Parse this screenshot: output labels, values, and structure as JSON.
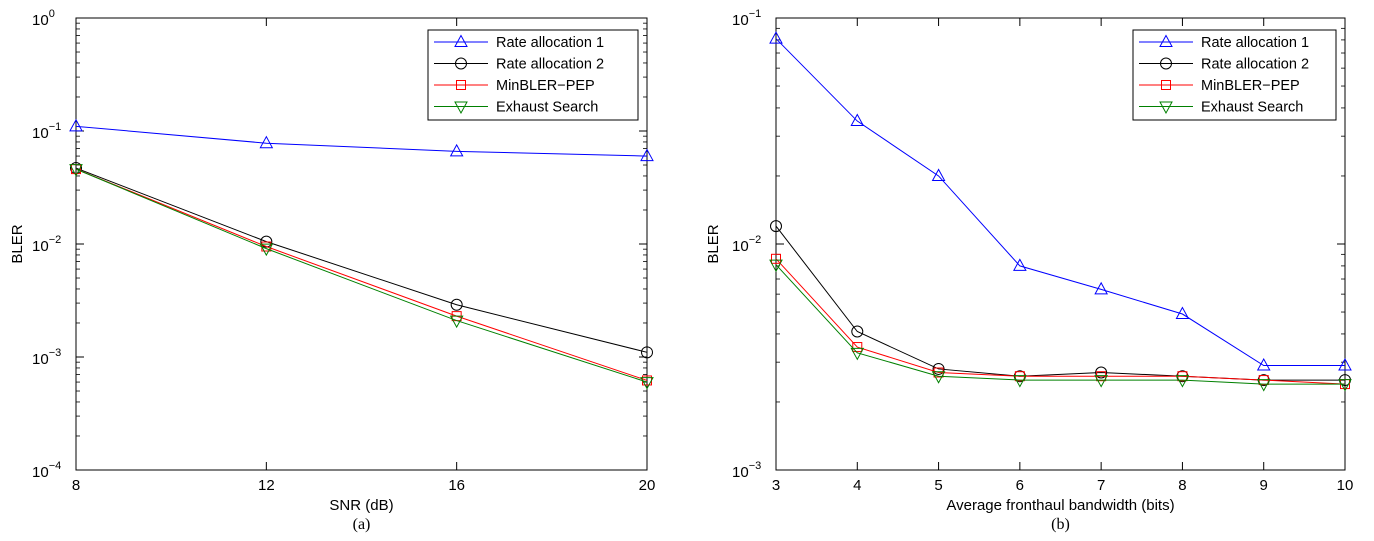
{
  "chart_data": [
    {
      "type": "line",
      "panel_label": "(a)",
      "xlabel": "SNR (dB)",
      "ylabel": "BLER",
      "xlim": [
        8,
        20
      ],
      "ylim": [
        0.0001,
        1
      ],
      "yscale": "log",
      "x_ticks": [
        8,
        12,
        16,
        20
      ],
      "y_ticks": [
        {
          "value": 1,
          "base": "10",
          "exp": "0"
        },
        {
          "value": 0.1,
          "base": "10",
          "exp": "−1"
        },
        {
          "value": 0.01,
          "base": "10",
          "exp": "−2"
        },
        {
          "value": 0.001,
          "base": "10",
          "exp": "−3"
        },
        {
          "value": 0.0001,
          "base": "10",
          "exp": "−4"
        }
      ],
      "grid": false,
      "legend_position": "top-right",
      "x": [
        8,
        12,
        16,
        20
      ],
      "series": [
        {
          "name": "Rate allocation 1",
          "color": "#0000ff",
          "marker": "triangle-up",
          "values": [
            0.11,
            0.078,
            0.066,
            0.06
          ]
        },
        {
          "name": "Rate allocation 2",
          "color": "#000000",
          "marker": "circle",
          "values": [
            0.047,
            0.0105,
            0.0029,
            0.0011
          ]
        },
        {
          "name": "MinBLER−PEP",
          "color": "#ff0000",
          "marker": "square",
          "values": [
            0.046,
            0.0095,
            0.0023,
            0.00062
          ]
        },
        {
          "name": "Exhaust Search",
          "color": "#008000",
          "marker": "triangle-down",
          "values": [
            0.046,
            0.0091,
            0.0021,
            0.0006
          ]
        }
      ]
    },
    {
      "type": "line",
      "panel_label": "(b)",
      "xlabel": "Average fronthaul bandwidth (bits)",
      "ylabel": "BLER",
      "xlim": [
        3,
        10
      ],
      "ylim": [
        0.001,
        0.1
      ],
      "yscale": "log",
      "x_ticks": [
        3,
        4,
        5,
        6,
        7,
        8,
        9,
        10
      ],
      "y_ticks": [
        {
          "value": 0.1,
          "base": "10",
          "exp": "−1"
        },
        {
          "value": 0.01,
          "base": "10",
          "exp": "−2"
        },
        {
          "value": 0.001,
          "base": "10",
          "exp": "−3"
        }
      ],
      "grid": false,
      "legend_position": "top-right",
      "x": [
        3,
        4,
        5,
        6,
        7,
        8,
        9,
        10
      ],
      "series": [
        {
          "name": "Rate allocation 1",
          "color": "#0000ff",
          "marker": "triangle-up",
          "values": [
            0.081,
            0.035,
            0.02,
            0.008,
            0.0063,
            0.0049,
            0.0029,
            0.0029
          ]
        },
        {
          "name": "Rate allocation 2",
          "color": "#000000",
          "marker": "circle",
          "values": [
            0.012,
            0.0041,
            0.0028,
            0.0026,
            0.0027,
            0.0026,
            0.0025,
            0.0025
          ]
        },
        {
          "name": "MinBLER−PEP",
          "color": "#ff0000",
          "marker": "square",
          "values": [
            0.0086,
            0.0035,
            0.0027,
            0.0026,
            0.0026,
            0.0026,
            0.0025,
            0.0024
          ]
        },
        {
          "name": "Exhaust Search",
          "color": "#008000",
          "marker": "triangle-down",
          "values": [
            0.0081,
            0.0033,
            0.0026,
            0.0025,
            0.0025,
            0.0025,
            0.0024,
            0.0024
          ]
        }
      ]
    }
  ]
}
